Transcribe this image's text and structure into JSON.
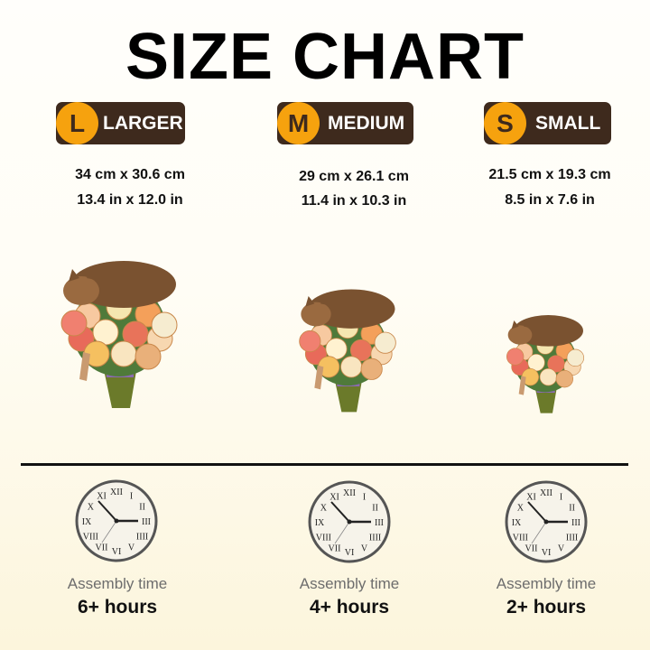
{
  "title": "SIZE CHART",
  "sizes": [
    {
      "letter": "L",
      "label": "LARGER",
      "cm": "34 cm x 30.6 cm",
      "in": "13.4 in x 12.0 in",
      "assembly_label": "Assembly time",
      "hours": "6+ hours"
    },
    {
      "letter": "M",
      "label": "MEDIUM",
      "cm": "29 cm x 26.1 cm",
      "in": "11.4 in x 10.3 in",
      "assembly_label": "Assembly time",
      "hours": "4+ hours"
    },
    {
      "letter": "S",
      "label": "SMALL",
      "cm": "21.5 cm x 19.3 cm",
      "in": "8.5 in x 7.6 in",
      "assembly_label": "Assembly time",
      "hours": "2+ hours"
    }
  ],
  "colors": {
    "badge_bg": "#3e2a1d",
    "badge_circle": "#f6a20e"
  }
}
